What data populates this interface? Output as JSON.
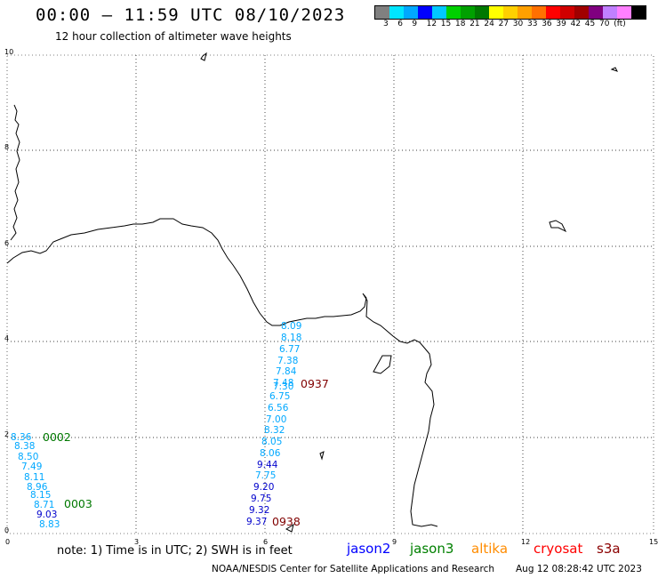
{
  "header": {
    "title": "00:00 – 11:59 UTC 08/10/2023",
    "subtitle": "12 hour collection of altimeter wave heights"
  },
  "color_scale": {
    "colors": [
      "#808080",
      "#00e5ff",
      "#00a8ff",
      "#0000ff",
      "#00c8ff",
      "#00d000",
      "#00a000",
      "#007800",
      "#ffff00",
      "#ffd000",
      "#ffa000",
      "#ff7000",
      "#ff0000",
      "#d00000",
      "#a00000",
      "#800080",
      "#c080ff",
      "#ff80ff",
      "#000000"
    ],
    "labels": [
      "3",
      "6",
      "9",
      "12",
      "15",
      "18",
      "21",
      "24",
      "27",
      "30",
      "33",
      "36",
      "39",
      "42",
      "45",
      "70",
      "(ft)"
    ]
  },
  "axes": {
    "x_ticks": [
      "0",
      "3",
      "6",
      "9",
      "12",
      "15"
    ],
    "y_ticks": [
      "0",
      "2",
      "4",
      "6",
      "8",
      "10"
    ]
  },
  "track_values": {
    "center_swh": [
      "8.09",
      "8.18",
      "6.77",
      "7.38",
      "7.84",
      "7.48",
      "7.30",
      "6.75",
      "6.56",
      "7.00",
      "8.32",
      "8.05",
      "8.06",
      "9.44",
      "7.75",
      "9.20",
      "9.75",
      "9.32",
      "9.37"
    ],
    "center_colors": [
      "#00a8ff",
      "#00a8ff",
      "#00a8ff",
      "#00a8ff",
      "#00a8ff",
      "#00a8ff",
      "#00a8ff",
      "#00a8ff",
      "#00a8ff",
      "#00a8ff",
      "#00a8ff",
      "#00a8ff",
      "#00a8ff",
      "#0000cc",
      "#00a8ff",
      "#0000cc",
      "#0000cc",
      "#0000cc",
      "#0000cc"
    ],
    "west_swh": [
      "8.36",
      "8.38",
      "8.50",
      "7.49",
      "8.11",
      "8.96",
      "8.15",
      "8.71",
      "9.03",
      "8.83"
    ],
    "west_colors": [
      "#00a8ff",
      "#00a8ff",
      "#00a8ff",
      "#00a8ff",
      "#00a8ff",
      "#00a8ff",
      "#00a8ff",
      "#00a8ff",
      "#0000cc",
      "#00a8ff"
    ],
    "time_labels": [
      {
        "text": "0937",
        "color": "#800000"
      },
      {
        "text": "0938",
        "color": "#800000"
      },
      {
        "text": "0002",
        "color": "#007800"
      },
      {
        "text": "0003",
        "color": "#007800"
      }
    ]
  },
  "footer": {
    "note": "note:  1) Time is in UTC;  2) SWH is in feet",
    "legend": [
      {
        "name": "jason2",
        "color": "#0000ff"
      },
      {
        "name": "jason3",
        "color": "#008000"
      },
      {
        "name": "altika",
        "color": "#ff8c00"
      },
      {
        "name": "cryosat",
        "color": "#ff0000"
      },
      {
        "name": "s3a",
        "color": "#8b0000"
      }
    ],
    "credit": "NOAA/NESDIS Center for Satellite Applications and Research",
    "timestamp": "Aug 12 08:28:42 UTC 2023"
  }
}
